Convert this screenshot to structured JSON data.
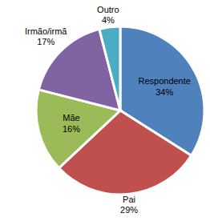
{
  "chart_data": {
    "type": "pie",
    "categories": [
      "Respondente",
      "Pai",
      "Mãe",
      "Irmão/irmã",
      "Outro"
    ],
    "values": [
      34,
      29,
      16,
      17,
      4
    ],
    "value_labels": [
      "34%",
      "29%",
      "16%",
      "17%",
      "4%"
    ],
    "colors": [
      "#4F81BD",
      "#C0504D",
      "#9BBB59",
      "#8064A2",
      "#4BACC6"
    ],
    "data_labels": true
  }
}
